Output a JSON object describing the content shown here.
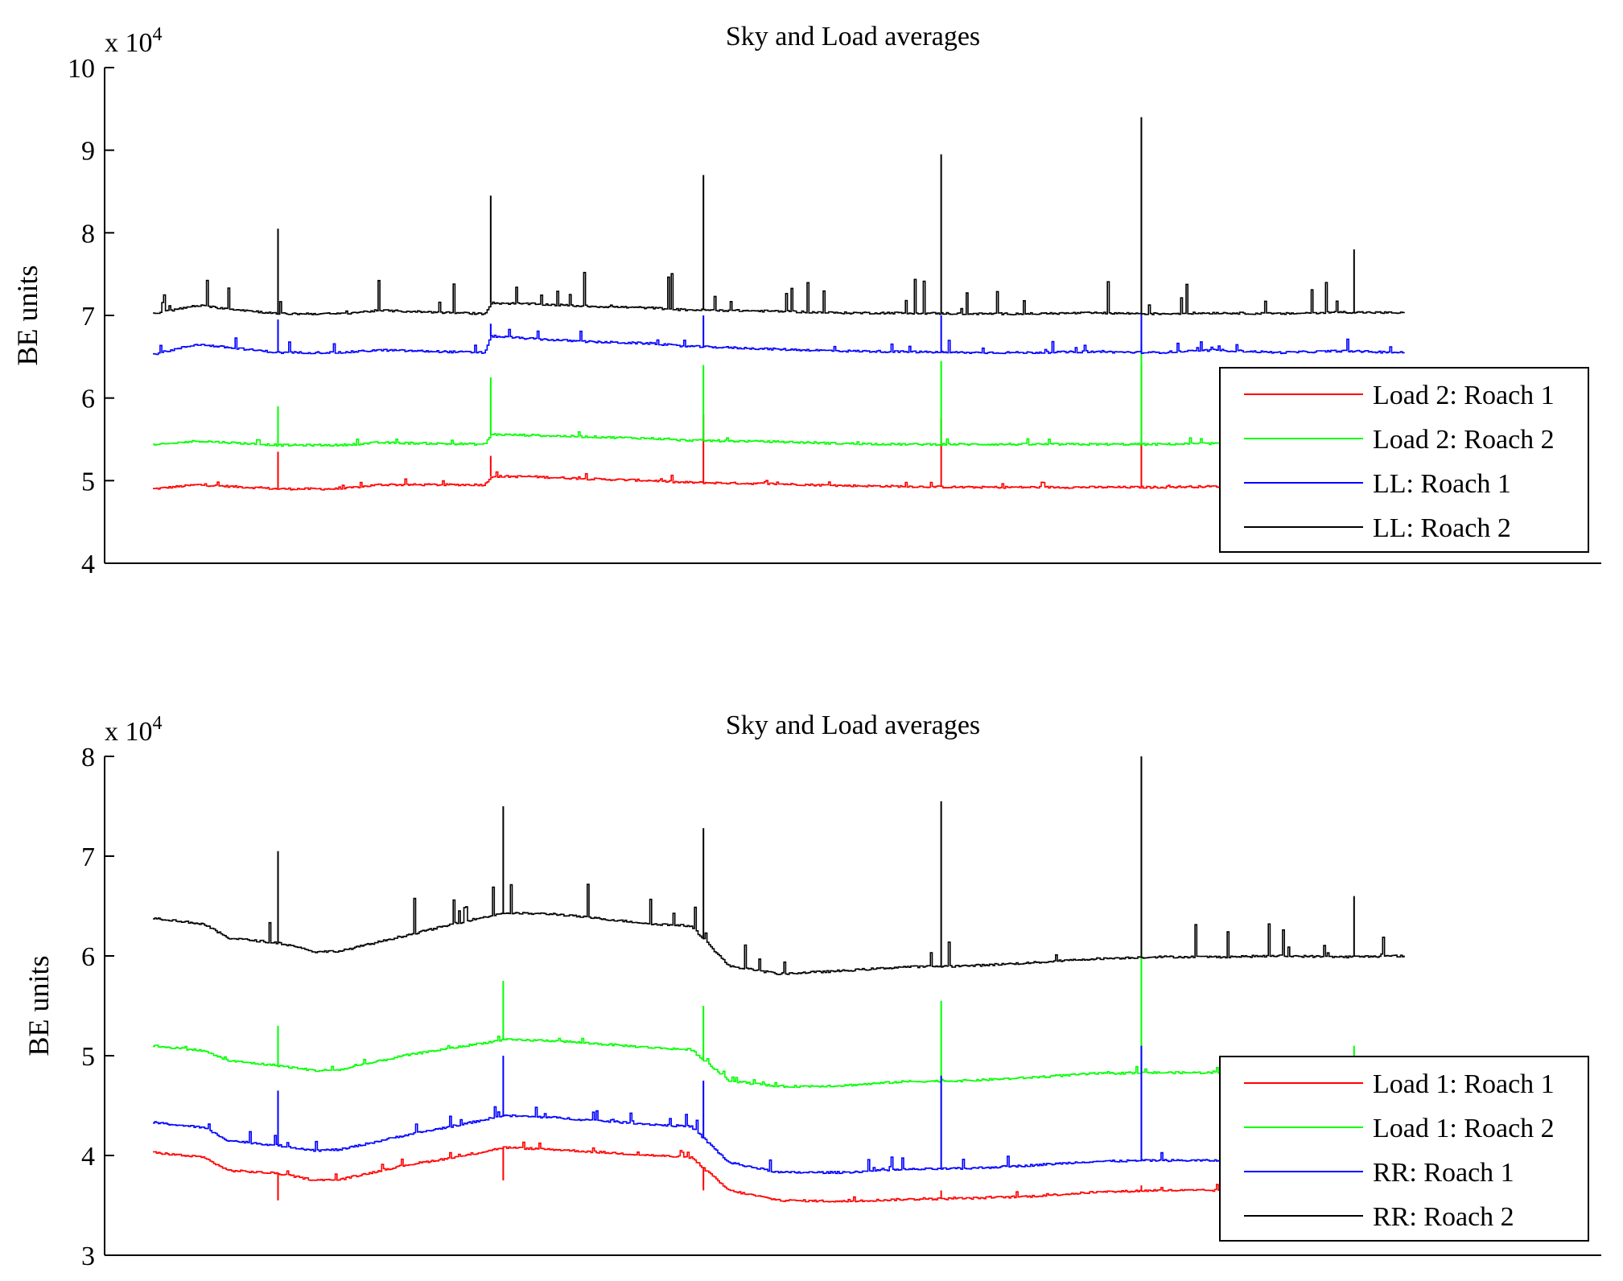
{
  "chart_data": [
    {
      "type": "line",
      "title": "Sky and Load averages",
      "ylabel": "BE units",
      "xlabel": "",
      "exponent_label": "x 10",
      "exponent_power": "4",
      "ylim": [
        40000,
        100000
      ],
      "yticks": [
        40000,
        50000,
        60000,
        70000,
        80000,
        90000,
        100000
      ],
      "ytick_labels": [
        "4",
        "5",
        "6",
        "7",
        "8",
        "9",
        "10"
      ],
      "xlim": [
        0,
        1
      ],
      "x_tick_labels_shown": false,
      "grid": false,
      "legend_position": "lower-right",
      "series": [
        {
          "name": "Load 2: Roach 1",
          "color": "#ff0000",
          "x": [
            0,
            0.035,
            0.1,
            0.15,
            0.18,
            0.265,
            0.27,
            0.3,
            0.35,
            0.4,
            0.42,
            0.46,
            0.5,
            0.55,
            0.6,
            0.65,
            0.7,
            0.75,
            0.8,
            0.85,
            0.9,
            0.95,
            1.0
          ],
          "values": [
            49000,
            49500,
            49000,
            49000,
            49500,
            49500,
            50500,
            50500,
            50200,
            50000,
            49800,
            49700,
            49600,
            49400,
            49300,
            49200,
            49200,
            49200,
            49200,
            49300,
            49200,
            49200,
            49200
          ],
          "spikes": [
            [
              0.1,
              53500
            ],
            [
              0.27,
              53000
            ],
            [
              0.44,
              58000
            ],
            [
              0.63,
              57500
            ],
            [
              0.79,
              64000
            ]
          ]
        },
        {
          "name": "Load 2: Roach 2",
          "color": "#00ff00",
          "x": [
            0,
            0.035,
            0.1,
            0.15,
            0.18,
            0.265,
            0.27,
            0.3,
            0.35,
            0.4,
            0.42,
            0.46,
            0.5,
            0.55,
            0.6,
            0.65,
            0.7,
            0.75,
            0.8,
            0.85,
            0.9,
            0.95,
            1.0
          ],
          "values": [
            54300,
            54800,
            54300,
            54300,
            54600,
            54400,
            55600,
            55500,
            55300,
            55100,
            54900,
            54800,
            54700,
            54500,
            54400,
            54400,
            54400,
            54400,
            54400,
            54500,
            54400,
            54400,
            54400
          ],
          "spikes": [
            [
              0.1,
              59000
            ],
            [
              0.27,
              62500
            ],
            [
              0.44,
              64000
            ],
            [
              0.63,
              64500
            ],
            [
              0.79,
              66500
            ]
          ]
        },
        {
          "name": "LL: Roach 1",
          "color": "#0000ff",
          "x": [
            0,
            0.035,
            0.1,
            0.15,
            0.18,
            0.265,
            0.27,
            0.3,
            0.35,
            0.4,
            0.42,
            0.46,
            0.5,
            0.55,
            0.6,
            0.65,
            0.7,
            0.75,
            0.8,
            0.85,
            0.9,
            0.95,
            1.0
          ],
          "values": [
            65300,
            66500,
            65500,
            65500,
            65800,
            65500,
            67500,
            67200,
            66800,
            66600,
            66300,
            66100,
            65900,
            65700,
            65600,
            65500,
            65500,
            65600,
            65500,
            65800,
            65500,
            65700,
            65500
          ],
          "spikes": [
            [
              0.1,
              69500
            ],
            [
              0.27,
              69000
            ],
            [
              0.44,
              70000
            ],
            [
              0.63,
              70000
            ],
            [
              0.79,
              70500
            ]
          ]
        },
        {
          "name": "LL: Roach 2",
          "color": "#000000",
          "x": [
            0,
            0.035,
            0.1,
            0.15,
            0.18,
            0.265,
            0.27,
            0.3,
            0.35,
            0.4,
            0.42,
            0.46,
            0.5,
            0.55,
            0.6,
            0.65,
            0.7,
            0.75,
            0.8,
            0.85,
            0.9,
            0.95,
            1.0
          ],
          "values": [
            70200,
            71200,
            70200,
            70200,
            70600,
            70200,
            71500,
            71400,
            71100,
            70900,
            70700,
            70600,
            70500,
            70300,
            70300,
            70200,
            70200,
            70300,
            70200,
            70300,
            70200,
            70400,
            70300
          ],
          "spikes": [
            [
              0.1,
              80500
            ],
            [
              0.27,
              84500
            ],
            [
              0.44,
              87000
            ],
            [
              0.63,
              89500
            ],
            [
              0.79,
              94000
            ],
            [
              0.96,
              78000
            ]
          ]
        }
      ]
    },
    {
      "type": "line",
      "title": "Sky and Load averages",
      "ylabel": "BE units",
      "xlabel": "",
      "exponent_label": "x 10",
      "exponent_power": "4",
      "ylim": [
        30000,
        80000
      ],
      "yticks": [
        30000,
        40000,
        50000,
        60000,
        70000,
        80000
      ],
      "ytick_labels": [
        "3",
        "4",
        "5",
        "6",
        "7",
        "8"
      ],
      "xlim": [
        0,
        1
      ],
      "x_tick_labels_shown": false,
      "grid": false,
      "legend_position": "lower-right",
      "series": [
        {
          "name": "Load 1: Roach 1",
          "color": "#ff0000",
          "x": [
            0,
            0.04,
            0.06,
            0.1,
            0.13,
            0.15,
            0.2,
            0.25,
            0.28,
            0.32,
            0.4,
            0.43,
            0.46,
            0.5,
            0.55,
            0.6,
            0.65,
            0.7,
            0.75,
            0.8,
            0.85,
            0.9,
            0.95,
            1.0
          ],
          "values": [
            40300,
            39800,
            38500,
            38200,
            37500,
            37600,
            39000,
            40000,
            40800,
            40600,
            40000,
            39800,
            36500,
            35500,
            35400,
            35600,
            35700,
            35900,
            36300,
            36500,
            36500,
            36500,
            36400,
            36500
          ],
          "spikes": [
            [
              0.1,
              35500
            ],
            [
              0.28,
              37500
            ],
            [
              0.44,
              36500
            ],
            [
              0.63,
              36500
            ],
            [
              0.79,
              37000
            ]
          ]
        },
        {
          "name": "Load 1: Roach 2",
          "color": "#00ff00",
          "x": [
            0,
            0.04,
            0.06,
            0.1,
            0.13,
            0.15,
            0.2,
            0.25,
            0.28,
            0.32,
            0.4,
            0.43,
            0.46,
            0.5,
            0.55,
            0.6,
            0.65,
            0.7,
            0.75,
            0.8,
            0.85,
            0.9,
            0.95,
            1.0
          ],
          "values": [
            51000,
            50500,
            49500,
            49000,
            48500,
            48600,
            50000,
            51000,
            51600,
            51500,
            50800,
            50600,
            47500,
            46900,
            47000,
            47400,
            47500,
            47800,
            48200,
            48300,
            48300,
            48400,
            48300,
            48300
          ],
          "spikes": [
            [
              0.1,
              53000
            ],
            [
              0.28,
              57500
            ],
            [
              0.44,
              55000
            ],
            [
              0.63,
              55500
            ],
            [
              0.79,
              60000
            ],
            [
              0.96,
              51000
            ]
          ]
        },
        {
          "name": "RR: Roach 1",
          "color": "#0000ff",
          "x": [
            0,
            0.04,
            0.06,
            0.1,
            0.13,
            0.15,
            0.2,
            0.25,
            0.28,
            0.32,
            0.4,
            0.43,
            0.46,
            0.5,
            0.55,
            0.6,
            0.65,
            0.7,
            0.75,
            0.8,
            0.85,
            0.9,
            0.95,
            1.0
          ],
          "values": [
            43300,
            42800,
            41500,
            41000,
            40500,
            40600,
            42000,
            43200,
            44000,
            43800,
            43100,
            42900,
            39300,
            38300,
            38300,
            38600,
            38700,
            39000,
            39400,
            39500,
            39500,
            39500,
            39400,
            39400
          ],
          "spikes": [
            [
              0.1,
              46500
            ],
            [
              0.28,
              50000
            ],
            [
              0.44,
              47500
            ],
            [
              0.63,
              48000
            ],
            [
              0.79,
              51000
            ]
          ]
        },
        {
          "name": "RR: Roach 2",
          "color": "#000000",
          "x": [
            0,
            0.04,
            0.06,
            0.1,
            0.13,
            0.15,
            0.2,
            0.25,
            0.28,
            0.32,
            0.4,
            0.43,
            0.46,
            0.5,
            0.55,
            0.6,
            0.65,
            0.7,
            0.75,
            0.8,
            0.85,
            0.9,
            0.95,
            1.0
          ],
          "values": [
            63800,
            63200,
            61800,
            61300,
            60400,
            60500,
            62000,
            63500,
            64300,
            64200,
            63200,
            63000,
            59000,
            58200,
            58500,
            58900,
            59000,
            59300,
            59700,
            59900,
            59900,
            60000,
            59900,
            60000
          ],
          "spikes": [
            [
              0.1,
              70500
            ],
            [
              0.28,
              75000
            ],
            [
              0.44,
              72800
            ],
            [
              0.63,
              75500
            ],
            [
              0.79,
              80000
            ],
            [
              0.96,
              66000
            ]
          ]
        }
      ]
    }
  ]
}
